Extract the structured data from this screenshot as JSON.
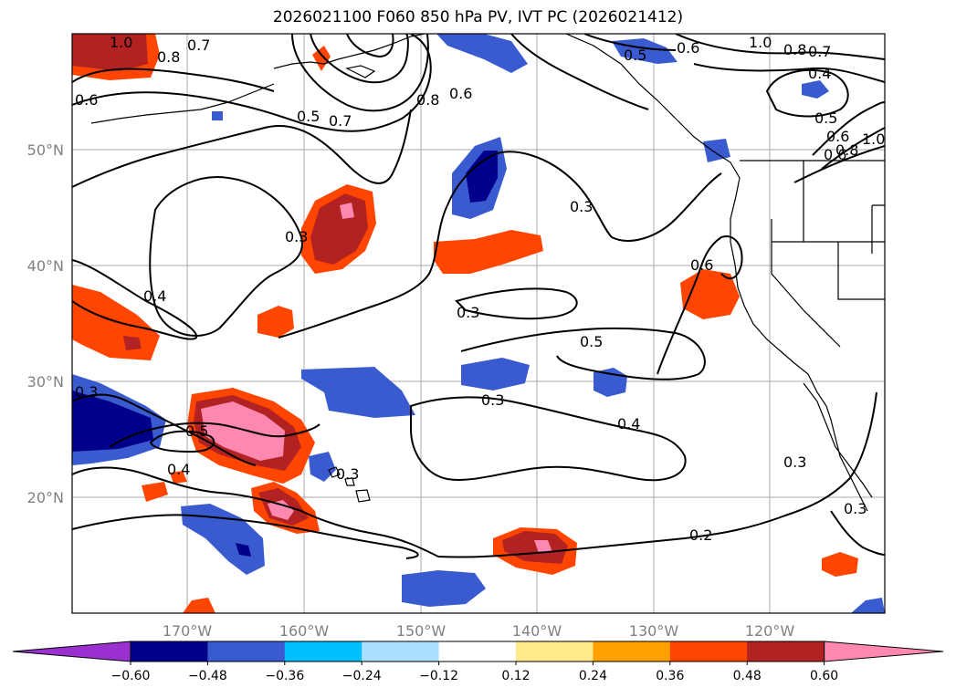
{
  "title": "2026021100 F060 850 hPa PV, IVT PC (2026021412)",
  "lat_labels": [
    "50°N",
    "40°N",
    "30°N",
    "20°N"
  ],
  "lon_labels": [
    "170°W",
    "160°W",
    "150°W",
    "140°W",
    "130°W",
    "120°W"
  ],
  "colorbar": {
    "tick_labels": [
      "−0.60",
      "−0.48",
      "−0.36",
      "−0.24",
      "−0.12",
      "0.12",
      "0.24",
      "0.36",
      "0.48",
      "0.60"
    ],
    "colors": [
      "#9b30d0",
      "#00008b",
      "#3a5bd0",
      "#00bfff",
      "#aadfff",
      "#ffffff",
      "#ffe98a",
      "#ffa000",
      "#ff4500",
      "#b22222",
      "#ff88b0"
    ]
  },
  "contour_labels": [
    "1.0",
    "0.8",
    "0.7",
    "0.6",
    "0.5",
    "0.7",
    "0.8",
    "0.6",
    "0.5",
    "0.6",
    "1.0",
    "0.8",
    "0.7",
    "0.4",
    "0.5",
    "0.6",
    "0.8",
    "1.0",
    "0.3",
    "0.3",
    "0.4",
    "0.3",
    "0.6",
    "0.5",
    "0.3",
    "0.3",
    "0.5",
    "0.4",
    "0.4",
    "0.3",
    "0.3",
    "0.3",
    "0.2",
    "0.6"
  ]
}
